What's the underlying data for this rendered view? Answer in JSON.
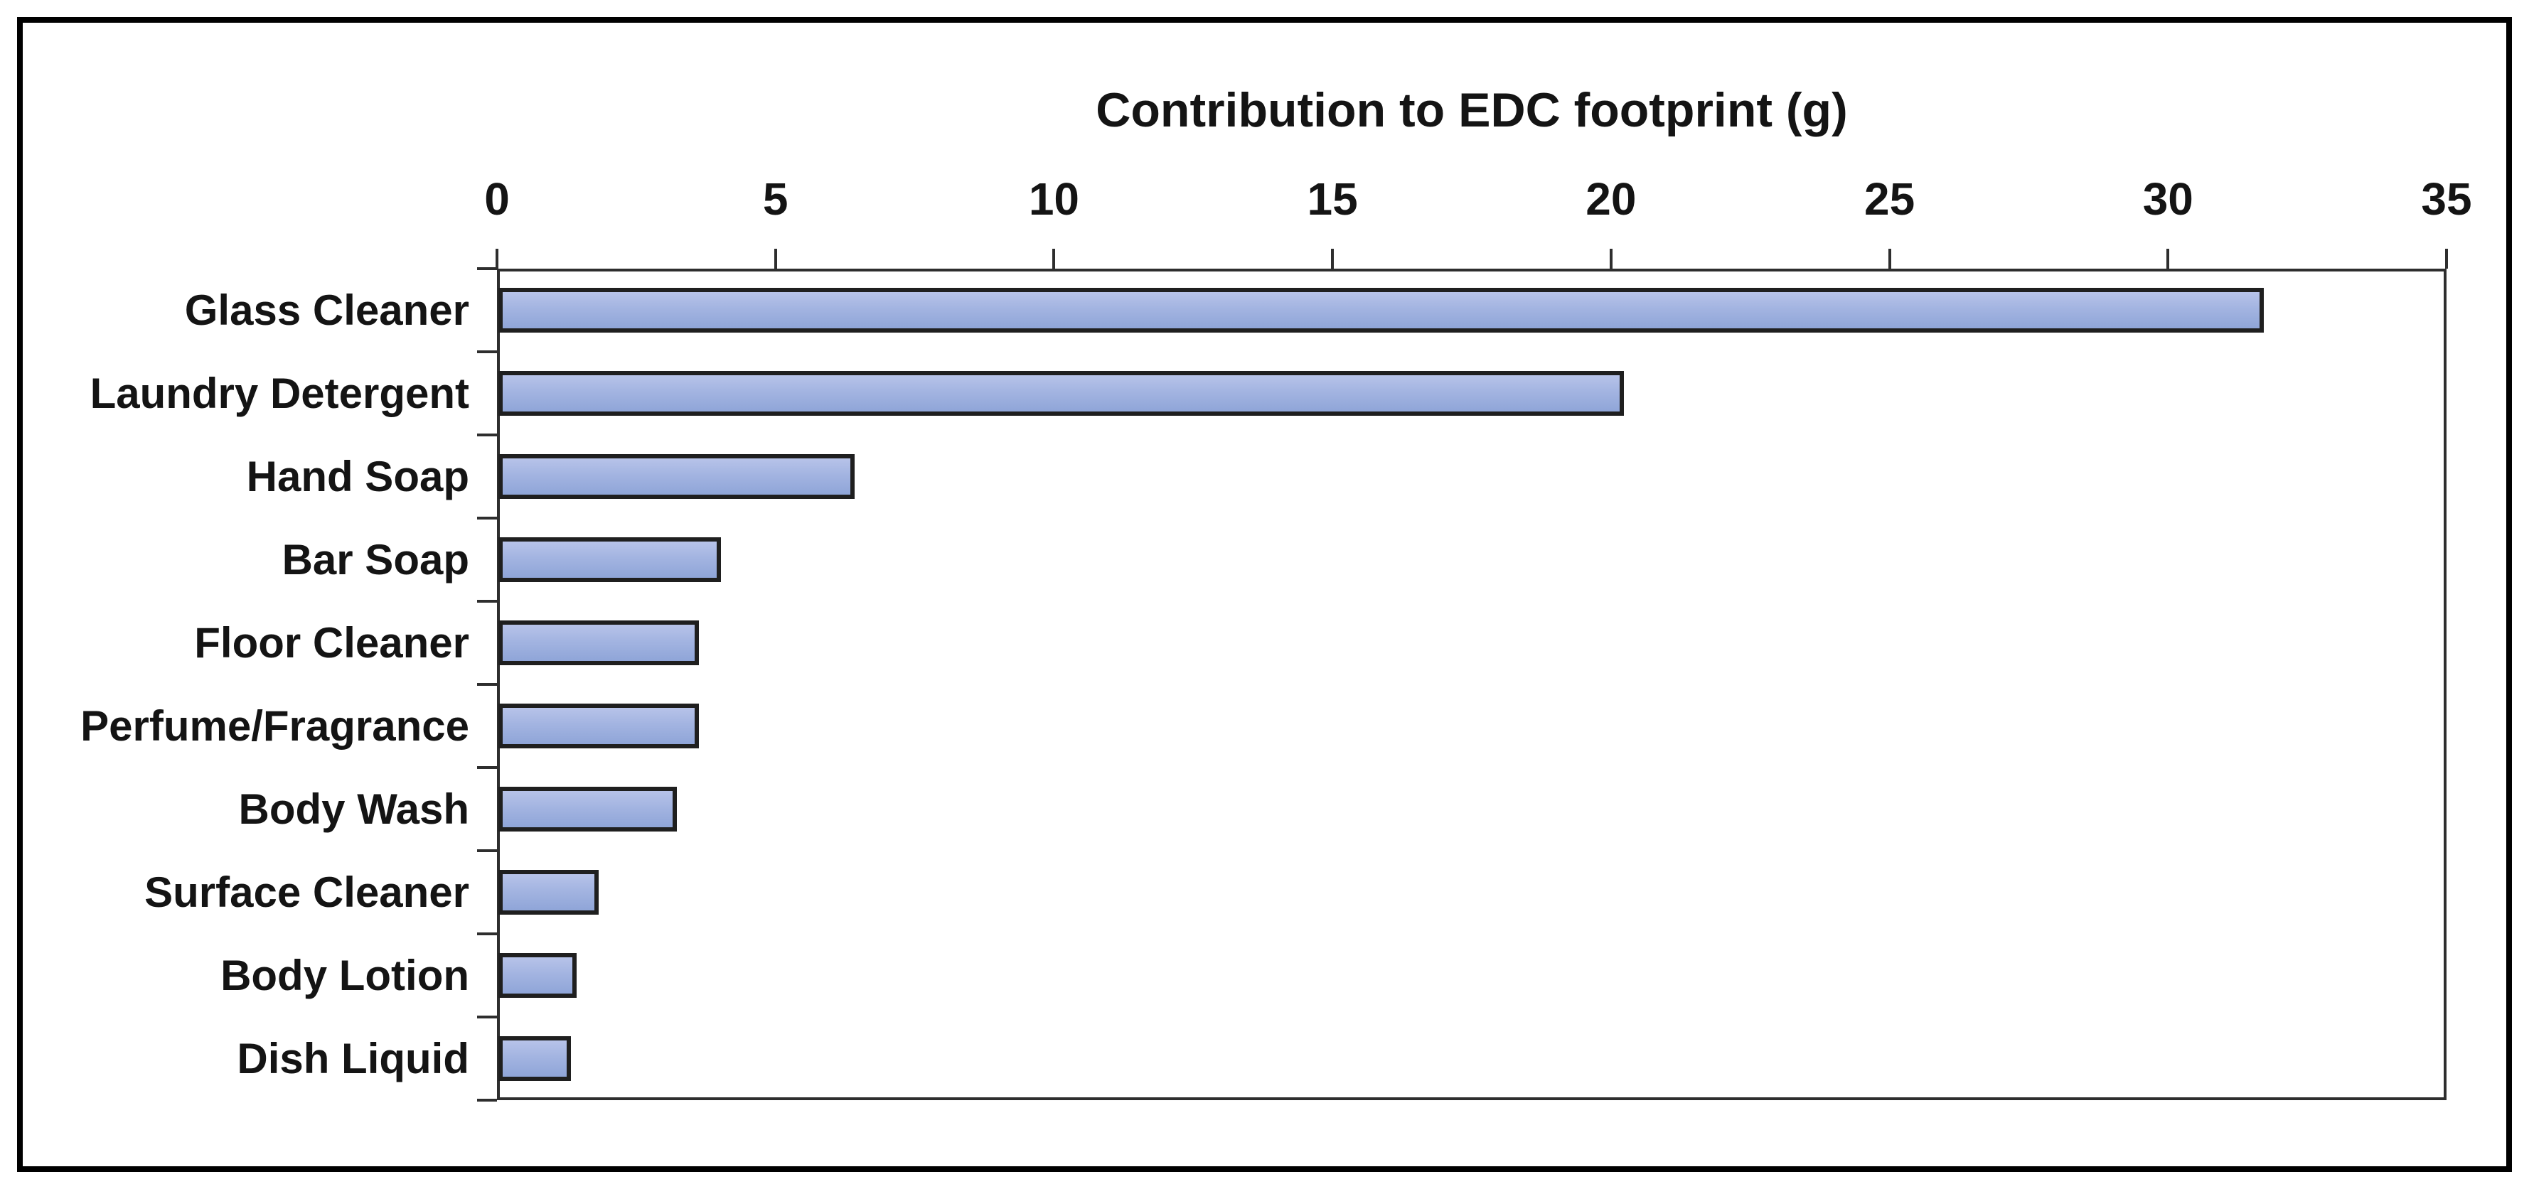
{
  "chart_data": {
    "type": "bar",
    "orientation": "horizontal",
    "title": "Contribution to EDC footprint (g)",
    "xlabel": "",
    "ylabel": "",
    "categories": [
      "Glass Cleaner",
      "Laundry Detergent",
      "Hand Soap",
      "Bar Soap",
      "Floor Cleaner",
      "Perfume/Fragrance",
      "Body Wash",
      "Surface Cleaner",
      "Body Lotion",
      "Dish Liquid"
    ],
    "values": [
      31.7,
      20.2,
      6.4,
      4.0,
      3.6,
      3.6,
      3.2,
      1.8,
      1.4,
      1.3
    ],
    "xlim": [
      0,
      35
    ],
    "x_ticks": [
      0,
      5,
      10,
      15,
      20,
      25,
      30,
      35
    ],
    "x_tick_labels": [
      "0",
      "5",
      "10",
      "15",
      "20",
      "25",
      "30",
      "35"
    ],
    "axis_position": "top",
    "grid": false,
    "legend_position": "none",
    "colors": {
      "bar_fill_top": "#B7C3E9",
      "bar_fill_bottom": "#8FA5D8",
      "bar_border": "#1F1F1F",
      "axis": "#2E2E2E",
      "text": "#141414",
      "background": "#FFFFFF",
      "outer_frame": "#000000"
    }
  }
}
